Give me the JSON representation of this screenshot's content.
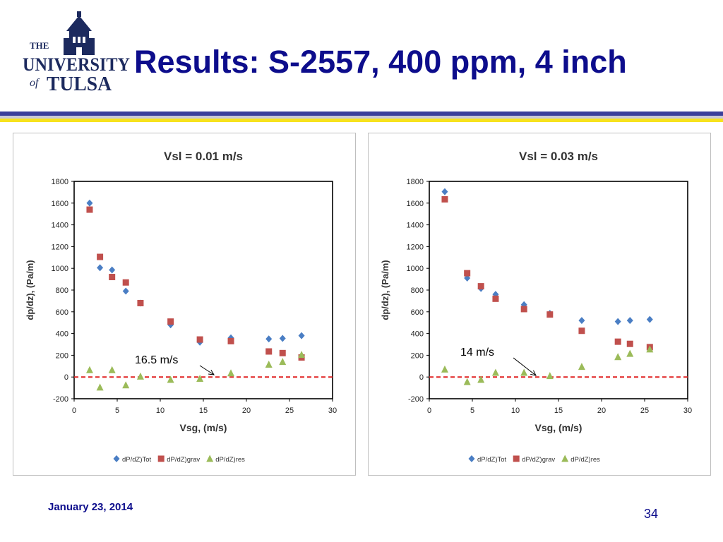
{
  "header": {
    "logo_text": {
      "the": "THE",
      "university": "UNIVERSITY",
      "of": "of",
      "tulsa": "TULSA"
    },
    "title": "Results: S-2557, 400 ppm, 4 inch"
  },
  "footer": {
    "date": "January 23, 2014",
    "page_number": "34"
  },
  "colors": {
    "title": "#0d0d8c",
    "rule_navy": "#3b3f9a",
    "rule_gold": "#f7e21e",
    "tot": "#4a7ec4",
    "grav": "#c0504d",
    "res": "#9bbb59",
    "zero_line": "#e02020"
  },
  "chart_data": [
    {
      "type": "scatter",
      "title": "Vsl = 0.01 m/s",
      "xlabel": "Vsg, (m/s)",
      "ylabel": "dp/dz), (Pa/m)",
      "xlim": [
        0,
        30
      ],
      "ylim": [
        -200,
        1800
      ],
      "xticks": [
        "0",
        "5",
        "10",
        "15",
        "20",
        "25",
        "30"
      ],
      "yticks": [
        "-200",
        "0",
        "200",
        "400",
        "600",
        "800",
        "1000",
        "1200",
        "1400",
        "1600",
        "1800"
      ],
      "grid": false,
      "legend_position": "bottom",
      "series": [
        {
          "name": "dP/dZ)Tot",
          "marker": "diamond",
          "color": "#4a7ec4",
          "x": [
            1.8,
            3.0,
            4.4,
            6.0,
            7.7,
            11.2,
            14.6,
            18.2,
            22.6,
            24.2,
            26.4
          ],
          "y": [
            1600,
            1005,
            985,
            790,
            680,
            480,
            320,
            360,
            350,
            355,
            380
          ]
        },
        {
          "name": "dP/dZ)grav",
          "marker": "square",
          "color": "#c0504d",
          "x": [
            1.8,
            3.0,
            4.4,
            6.0,
            7.7,
            11.2,
            14.6,
            18.2,
            22.6,
            24.2,
            26.4
          ],
          "y": [
            1540,
            1105,
            920,
            870,
            680,
            510,
            345,
            330,
            235,
            220,
            180
          ]
        },
        {
          "name": "dP/dZ)res",
          "marker": "triangle",
          "color": "#9bbb59",
          "x": [
            1.8,
            3.0,
            4.4,
            6.0,
            7.7,
            11.2,
            14.6,
            18.2,
            22.6,
            24.2,
            26.4
          ],
          "y": [
            65,
            -95,
            65,
            -75,
            5,
            -25,
            -15,
            35,
            115,
            140,
            205
          ]
        }
      ],
      "reference_line_y": 0,
      "annotation": {
        "text": "16.5 m/s",
        "points_to": [
          16.5,
          0
        ]
      }
    },
    {
      "type": "scatter",
      "title": "Vsl = 0.03 m/s",
      "xlabel": "Vsg, (m/s)",
      "ylabel": "dp/dz), (Pa/m)",
      "xlim": [
        0,
        30
      ],
      "ylim": [
        -200,
        1800
      ],
      "xticks": [
        "0",
        "5",
        "10",
        "15",
        "20",
        "25",
        "30"
      ],
      "yticks": [
        "-200",
        "0",
        "200",
        "400",
        "600",
        "800",
        "1000",
        "1200",
        "1400",
        "1600",
        "1800"
      ],
      "grid": false,
      "legend_position": "bottom",
      "series": [
        {
          "name": "dP/dZ)Tot",
          "marker": "diamond",
          "color": "#4a7ec4",
          "x": [
            1.8,
            4.4,
            6.0,
            7.7,
            11.0,
            14.0,
            17.7,
            21.9,
            23.3,
            25.6
          ],
          "y": [
            1705,
            910,
            815,
            760,
            665,
            585,
            520,
            510,
            520,
            530
          ]
        },
        {
          "name": "dP/dZ)grav",
          "marker": "square",
          "color": "#c0504d",
          "x": [
            1.8,
            4.4,
            6.0,
            7.7,
            11.0,
            14.0,
            17.7,
            21.9,
            23.3,
            25.6
          ],
          "y": [
            1635,
            955,
            835,
            720,
            625,
            575,
            425,
            325,
            305,
            275
          ]
        },
        {
          "name": "dP/dZ)res",
          "marker": "triangle",
          "color": "#9bbb59",
          "x": [
            1.8,
            4.4,
            6.0,
            7.7,
            11.0,
            14.0,
            17.7,
            21.9,
            23.3,
            25.6
          ],
          "y": [
            70,
            -45,
            -25,
            40,
            40,
            10,
            95,
            185,
            215,
            255
          ]
        }
      ],
      "reference_line_y": 0,
      "annotation": {
        "text": "14 m/s",
        "points_to": [
          14.0,
          0
        ]
      }
    }
  ]
}
